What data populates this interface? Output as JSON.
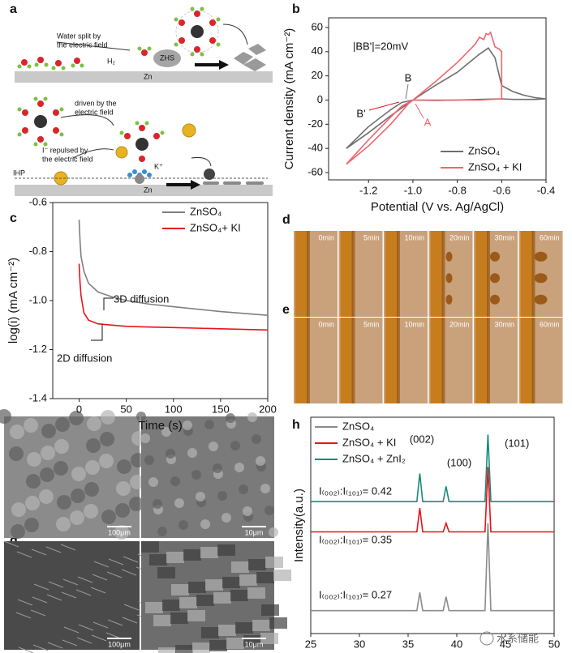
{
  "panel_labels": [
    "a",
    "b",
    "c",
    "d",
    "e",
    "f",
    "g",
    "h"
  ],
  "schematic": {
    "water_split": [
      "Water split by",
      "the electric field"
    ],
    "h2": "H₂",
    "zhs": "ZHS",
    "zn_top": "Zn",
    "driven": [
      "driven by the",
      "electric field"
    ],
    "repelled": [
      "I⁻ repulsed by",
      "the electric field"
    ],
    "ihp": "IHP",
    "k": "K⁺",
    "zn_bottom": "Zn"
  },
  "photos": {
    "d": [
      "0min",
      "5min",
      "10min",
      "20min",
      "30min",
      "60min"
    ],
    "e": [
      "0min",
      "5min",
      "10min",
      "20min",
      "30min",
      "60min"
    ]
  },
  "sem": {
    "f": [
      "100μm",
      "10μm"
    ],
    "g": [
      "100μm",
      "10μm"
    ]
  },
  "watermark": "水系储能",
  "chart_data": [
    {
      "type": "line",
      "xlabel": "Potential (V vs. Ag/AgCl)",
      "ylabel": "Current density (mA cm⁻²)",
      "xlim": [
        -1.38,
        -0.4
      ],
      "ylim": [
        -66,
        68
      ],
      "xticks": [
        -1.2,
        {
          "value": -1,
          "label": "-1.0"
        },
        -0.8,
        -0.6,
        -0.4
      ],
      "yticks": [
        -60,
        -40,
        -20,
        0,
        20,
        40,
        60
      ],
      "legend": "lower right",
      "annotations": [
        "|BB'|=20mV",
        "B",
        "B'",
        "A"
      ],
      "series": [
        {
          "name": "ZnSO₄",
          "color": "#6e6e6e",
          "x": [
            -1.3,
            -1.2,
            -1.1,
            -1.0,
            -0.9,
            -0.8,
            -0.7,
            -0.66,
            -0.63,
            -0.6,
            -0.55,
            -0.5,
            -0.45,
            -0.4,
            -0.45,
            -0.5,
            -0.55,
            -0.6,
            -0.7,
            -0.8,
            -0.9,
            -1.0,
            -1.05,
            -1.1,
            -1.2,
            -1.3
          ],
          "values": [
            -40,
            -27,
            -13,
            0,
            12,
            23,
            38,
            43,
            35,
            12,
            7,
            4,
            2,
            1,
            0.5,
            0.5,
            0.5,
            1,
            0.5,
            0,
            -0.3,
            0,
            -2,
            -8,
            -22,
            -40
          ]
        },
        {
          "name": "ZnSO₄ + KI",
          "color": "#f0646e",
          "x": [
            -1.3,
            -1.2,
            -1.1,
            -1.02,
            -0.9,
            -0.8,
            -0.72,
            -0.7,
            -0.68,
            -0.67,
            -0.66,
            -0.65,
            -0.63,
            -0.61,
            -0.6,
            -0.6,
            -0.7,
            -0.8,
            -0.9,
            -1.0,
            -1.05,
            -1.1,
            -1.2,
            -1.3
          ],
          "values": [
            -53,
            -38,
            -20,
            -3,
            15,
            31,
            46,
            52,
            50,
            55,
            54,
            56,
            44,
            42,
            40,
            1,
            0,
            0,
            0,
            0,
            -5,
            -14,
            -33,
            -53
          ]
        }
      ]
    },
    {
      "type": "line",
      "xlabel": "Time (s)",
      "ylabel": "log(i) (mA cm⁻²)",
      "xlim": [
        -28,
        200
      ],
      "ylim": [
        -1.4,
        -0.6
      ],
      "xticks": [
        0,
        50,
        100,
        150,
        200
      ],
      "yticks": [
        -1.4,
        -1.2,
        {
          "value": -1,
          "label": "-1.0"
        },
        -0.8,
        -0.6
      ],
      "legend": "upper right",
      "annotations": [
        "3D diffusion",
        "2D diffusion"
      ],
      "series": [
        {
          "name": "ZnSO₄",
          "color": "#7f7f7f",
          "x": [
            0,
            1,
            2,
            5,
            10,
            20,
            35,
            50,
            75,
            100,
            150,
            200
          ],
          "values": [
            -0.67,
            -0.76,
            -0.82,
            -0.88,
            -0.93,
            -0.965,
            -0.985,
            -1.0,
            -1.015,
            -1.025,
            -1.045,
            -1.06
          ]
        },
        {
          "name": "ZnSO₄+ KI",
          "color": "#e8131b",
          "x": [
            0,
            1,
            2,
            5,
            10,
            20,
            35,
            50,
            75,
            100,
            150,
            200
          ],
          "values": [
            -0.85,
            -0.93,
            -0.98,
            -1.05,
            -1.08,
            -1.095,
            -1.1,
            -1.105,
            -1.108,
            -1.11,
            -1.115,
            -1.12
          ]
        }
      ]
    },
    {
      "type": "line",
      "xlabel": "2 theta (degree)",
      "ylabel": "Intensity(a.u.)",
      "xlim": [
        25,
        50
      ],
      "ylim": [
        0,
        100
      ],
      "xticks": [
        25,
        30,
        35,
        40,
        45,
        50
      ],
      "legend": "upper left",
      "annotations": [
        "(002)",
        "(100)",
        "(101)",
        "I₍₀₀₂₎:I₍₁₀₁₎= 0.42",
        "I₍₀₀₂₎:I₍₁₀₁₎= 0.35",
        "I₍₀₀₂₎:I₍₁₀₁₎= 0.27"
      ],
      "series": [
        {
          "name": "ZnSO₄",
          "color": "#8c8c8c",
          "x": [
            25,
            35.9,
            36.2,
            36.5,
            38.6,
            38.9,
            39.2,
            42.9,
            43.2,
            43.5,
            50
          ],
          "values": [
            10.6,
            10.6,
            19,
            10.6,
            10.6,
            17,
            10.6,
            10.6,
            51,
            10.6,
            10.6
          ]
        },
        {
          "name": "ZnSO₄ + KI",
          "color": "#e8131b",
          "x": [
            25,
            35.9,
            36.2,
            36.5,
            38.6,
            38.9,
            39.2,
            42.9,
            43.2,
            43.5,
            50
          ],
          "values": [
            47,
            47,
            58,
            47,
            47,
            51,
            47,
            47,
            77,
            47,
            47
          ]
        },
        {
          "name": "ZnSO₄ + ZnI₂",
          "color": "#1a8a7a",
          "x": [
            25,
            35.9,
            36.2,
            36.5,
            38.6,
            38.9,
            39.2,
            42.9,
            43.2,
            43.5,
            50
          ],
          "values": [
            61,
            61,
            74,
            61,
            61,
            68,
            61,
            61,
            92,
            61,
            61
          ]
        }
      ]
    }
  ]
}
